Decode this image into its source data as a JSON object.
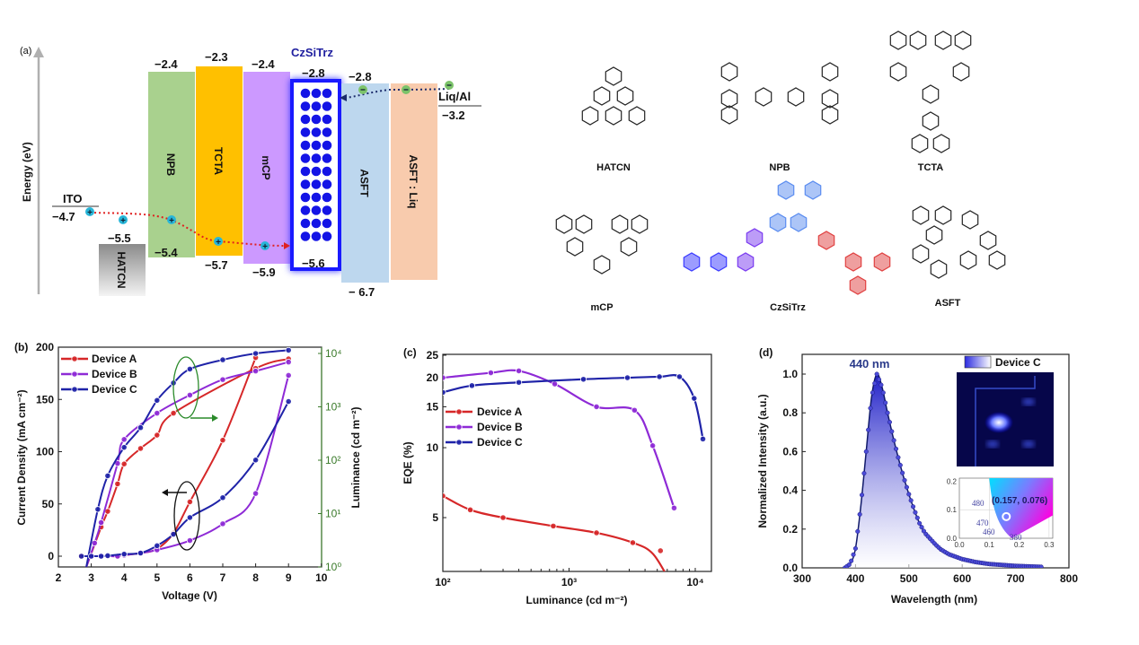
{
  "panel_a": {
    "label": "(a)",
    "y_axis_label": "Energy (eV)",
    "anode": {
      "name": "ITO",
      "level": "−4.7"
    },
    "cathode": {
      "name": "Liq/Al",
      "level": "−3.2"
    },
    "emitter_title": "CzSiTrz",
    "layers": [
      {
        "name": "HATCN",
        "lumo": "",
        "homo": "−5.5",
        "color": "#9a9a9a"
      },
      {
        "name": "NPB",
        "lumo": "−2.4",
        "homo": "−5.4",
        "color": "#a9d18e"
      },
      {
        "name": "TCTA",
        "lumo": "−2.3",
        "homo": "−5.7",
        "color": "#ffc000"
      },
      {
        "name": "mCP",
        "lumo": "−2.4",
        "homo": "−5.9",
        "color": "#cc99ff"
      },
      {
        "name": "CzSiTrz",
        "lumo": "−2.8",
        "homo": "−5.6",
        "color": "#1a1aff"
      },
      {
        "name": "ASFT",
        "lumo": "−2.8",
        "homo": "− 6.7",
        "color": "#bdd7ee"
      },
      {
        "name": "ASFT : Liq",
        "lumo": "",
        "homo": "",
        "color": "#f8cbad"
      }
    ],
    "hole_color": "#29b6d8",
    "electron_color": "#7cc36a"
  },
  "molecules": [
    "HATCN",
    "NPB",
    "TCTA",
    "mCP",
    "CzSiTrz",
    "ASFT"
  ],
  "chart_data": [
    {
      "panel": "(b)",
      "type": "line",
      "xlabel": "Voltage (V)",
      "ylabel": "Current Density (mA cm⁻²)",
      "y2label": "Luminance (cd m⁻²)",
      "xlim": [
        2,
        10
      ],
      "ylim": [
        -10,
        200
      ],
      "y2lim": [
        1,
        10000
      ],
      "y2scale": "log",
      "xticks": [
        "2",
        "3",
        "4",
        "5",
        "6",
        "7",
        "8",
        "9",
        "10"
      ],
      "yticks": [
        "0",
        "50",
        "100",
        "150",
        "200"
      ],
      "y2ticks": [
        "10⁰",
        "10¹",
        "10²",
        "10³",
        "10⁴"
      ],
      "legend": "top-left",
      "series": [
        {
          "name": "Device A",
          "color": "#d62728",
          "current_density": [
            [
              2.7,
              0
            ],
            [
              3,
              0
            ],
            [
              3.3,
              0
            ],
            [
              3.5,
              0
            ],
            [
              3.8,
              0
            ],
            [
              4,
              1
            ],
            [
              4.5,
              3
            ],
            [
              5,
              7
            ],
            [
              5.5,
              22
            ],
            [
              6,
              52
            ],
            [
              7,
              111
            ],
            [
              8,
              190
            ]
          ],
          "luminance": [
            [
              3.3,
              5.6
            ],
            [
              3.5,
              11
            ],
            [
              3.8,
              36
            ],
            [
              4,
              85
            ],
            [
              4.5,
              166
            ],
            [
              5,
              295
            ],
            [
              5.5,
              760
            ],
            [
              8,
              5250
            ],
            [
              9,
              7900
            ]
          ]
        },
        {
          "name": "Device B",
          "color": "#8e2ad6",
          "current_density": [
            [
              3,
              0
            ],
            [
              3.3,
              0
            ],
            [
              3.5,
              0
            ],
            [
              3.8,
              0
            ],
            [
              4,
              1
            ],
            [
              4.5,
              3
            ],
            [
              5,
              6
            ],
            [
              6,
              15
            ],
            [
              7,
              31
            ],
            [
              8,
              60
            ],
            [
              9,
              173
            ]
          ],
          "luminance": [
            [
              3.1,
              2.8
            ],
            [
              3.3,
              6.8
            ],
            [
              3.8,
              87
            ],
            [
              4,
              245
            ],
            [
              5,
              760
            ],
            [
              6,
              1660
            ],
            [
              7,
              3240
            ],
            [
              8,
              4680
            ],
            [
              9,
              6900
            ]
          ]
        },
        {
          "name": "Device C",
          "color": "#1f23a8",
          "current_density": [
            [
              2.7,
              0
            ],
            [
              3,
              0
            ],
            [
              3.3,
              0
            ],
            [
              3.5,
              0.5
            ],
            [
              4,
              2
            ],
            [
              4.5,
              3
            ],
            [
              5,
              10
            ],
            [
              5.5,
              21
            ],
            [
              6,
              37
            ],
            [
              7,
              56
            ],
            [
              8,
              92
            ],
            [
              9,
              148
            ]
          ],
          "luminance": [
            [
              3.2,
              12
            ],
            [
              3.5,
              51
            ],
            [
              4,
              174
            ],
            [
              4.5,
              407
            ],
            [
              5,
              1320
            ],
            [
              5.5,
              2800
            ],
            [
              6,
              5100
            ],
            [
              7,
              7600
            ],
            [
              8,
              10000
            ],
            [
              9,
              11500
            ]
          ]
        }
      ]
    },
    {
      "panel": "(c)",
      "type": "line",
      "xlabel": "Luminance (cd m⁻²)",
      "ylabel": "EQE (%)",
      "xscale": "log",
      "yscale": "log",
      "xlim": [
        100,
        12500
      ],
      "ylim": [
        2.9,
        25
      ],
      "xticks": [
        "10²",
        "10³",
        "10⁴"
      ],
      "yticks": [
        "5",
        "10",
        "15",
        "20",
        "25"
      ],
      "legend": "center-left",
      "series": [
        {
          "name": "Device A",
          "color": "#d62728",
          "points": [
            [
              100,
              6.2
            ],
            [
              165,
              5.4
            ],
            [
              300,
              5.0
            ],
            [
              750,
              4.6
            ],
            [
              1650,
              4.3
            ],
            [
              3200,
              3.9
            ],
            [
              5300,
              3.6
            ]
          ]
        },
        {
          "name": "Device B",
          "color": "#8e2ad6",
          "points": [
            [
              100,
              20
            ],
            [
              240,
              21
            ],
            [
              400,
              21.4
            ],
            [
              770,
              18.8
            ],
            [
              1650,
              15
            ],
            [
              3300,
              14.5
            ],
            [
              4600,
              10.2
            ],
            [
              6800,
              5.5
            ]
          ]
        },
        {
          "name": "Device C",
          "color": "#1f23a8",
          "points": [
            [
              100,
              17.3
            ],
            [
              170,
              18.5
            ],
            [
              400,
              19.1
            ],
            [
              1300,
              19.7
            ],
            [
              2900,
              20
            ],
            [
              5200,
              20.2
            ],
            [
              7500,
              20.2
            ],
            [
              9800,
              16.3
            ],
            [
              11500,
              10.9
            ]
          ]
        }
      ]
    },
    {
      "panel": "(d)",
      "type": "area",
      "xlabel": "Wavelength (nm)",
      "ylabel": "Normalized Intensity (a.u.)",
      "xlim": [
        300,
        800
      ],
      "ylim": [
        0,
        1.1
      ],
      "xticks": [
        "300",
        "400",
        "500",
        "600",
        "700",
        "800"
      ],
      "yticks": [
        "0.0",
        "0.2",
        "0.4",
        "0.6",
        "0.8",
        "1.0"
      ],
      "peak_label": "440 nm",
      "legend": "top-right",
      "series": [
        {
          "name": "Device C",
          "color": "#2323b8",
          "points": [
            [
              380,
              0
            ],
            [
              390,
              0.02
            ],
            [
              400,
              0.1
            ],
            [
              410,
              0.32
            ],
            [
              420,
              0.6
            ],
            [
              430,
              0.88
            ],
            [
              440,
              1.0
            ],
            [
              450,
              0.93
            ],
            [
              460,
              0.8
            ],
            [
              470,
              0.68
            ],
            [
              480,
              0.57
            ],
            [
              490,
              0.47
            ],
            [
              500,
              0.38
            ],
            [
              510,
              0.3
            ],
            [
              520,
              0.23
            ],
            [
              530,
              0.18
            ],
            [
              540,
              0.15
            ],
            [
              550,
              0.12
            ],
            [
              560,
              0.095
            ],
            [
              575,
              0.07
            ],
            [
              600,
              0.045
            ],
            [
              625,
              0.03
            ],
            [
              650,
              0.02
            ],
            [
              700,
              0.01
            ],
            [
              750,
              0.005
            ]
          ]
        }
      ],
      "cie_inset": {
        "coordinate_label": "(0.157, 0.076)",
        "x": 0.157,
        "y": 0.076,
        "xticks": [
          "0.0",
          "0.1",
          "0.2",
          "0.3"
        ],
        "yticks": [
          "0.0",
          "0.1",
          "0.2"
        ],
        "wavelength_labels": [
          "480",
          "470",
          "460",
          "380"
        ]
      }
    }
  ]
}
